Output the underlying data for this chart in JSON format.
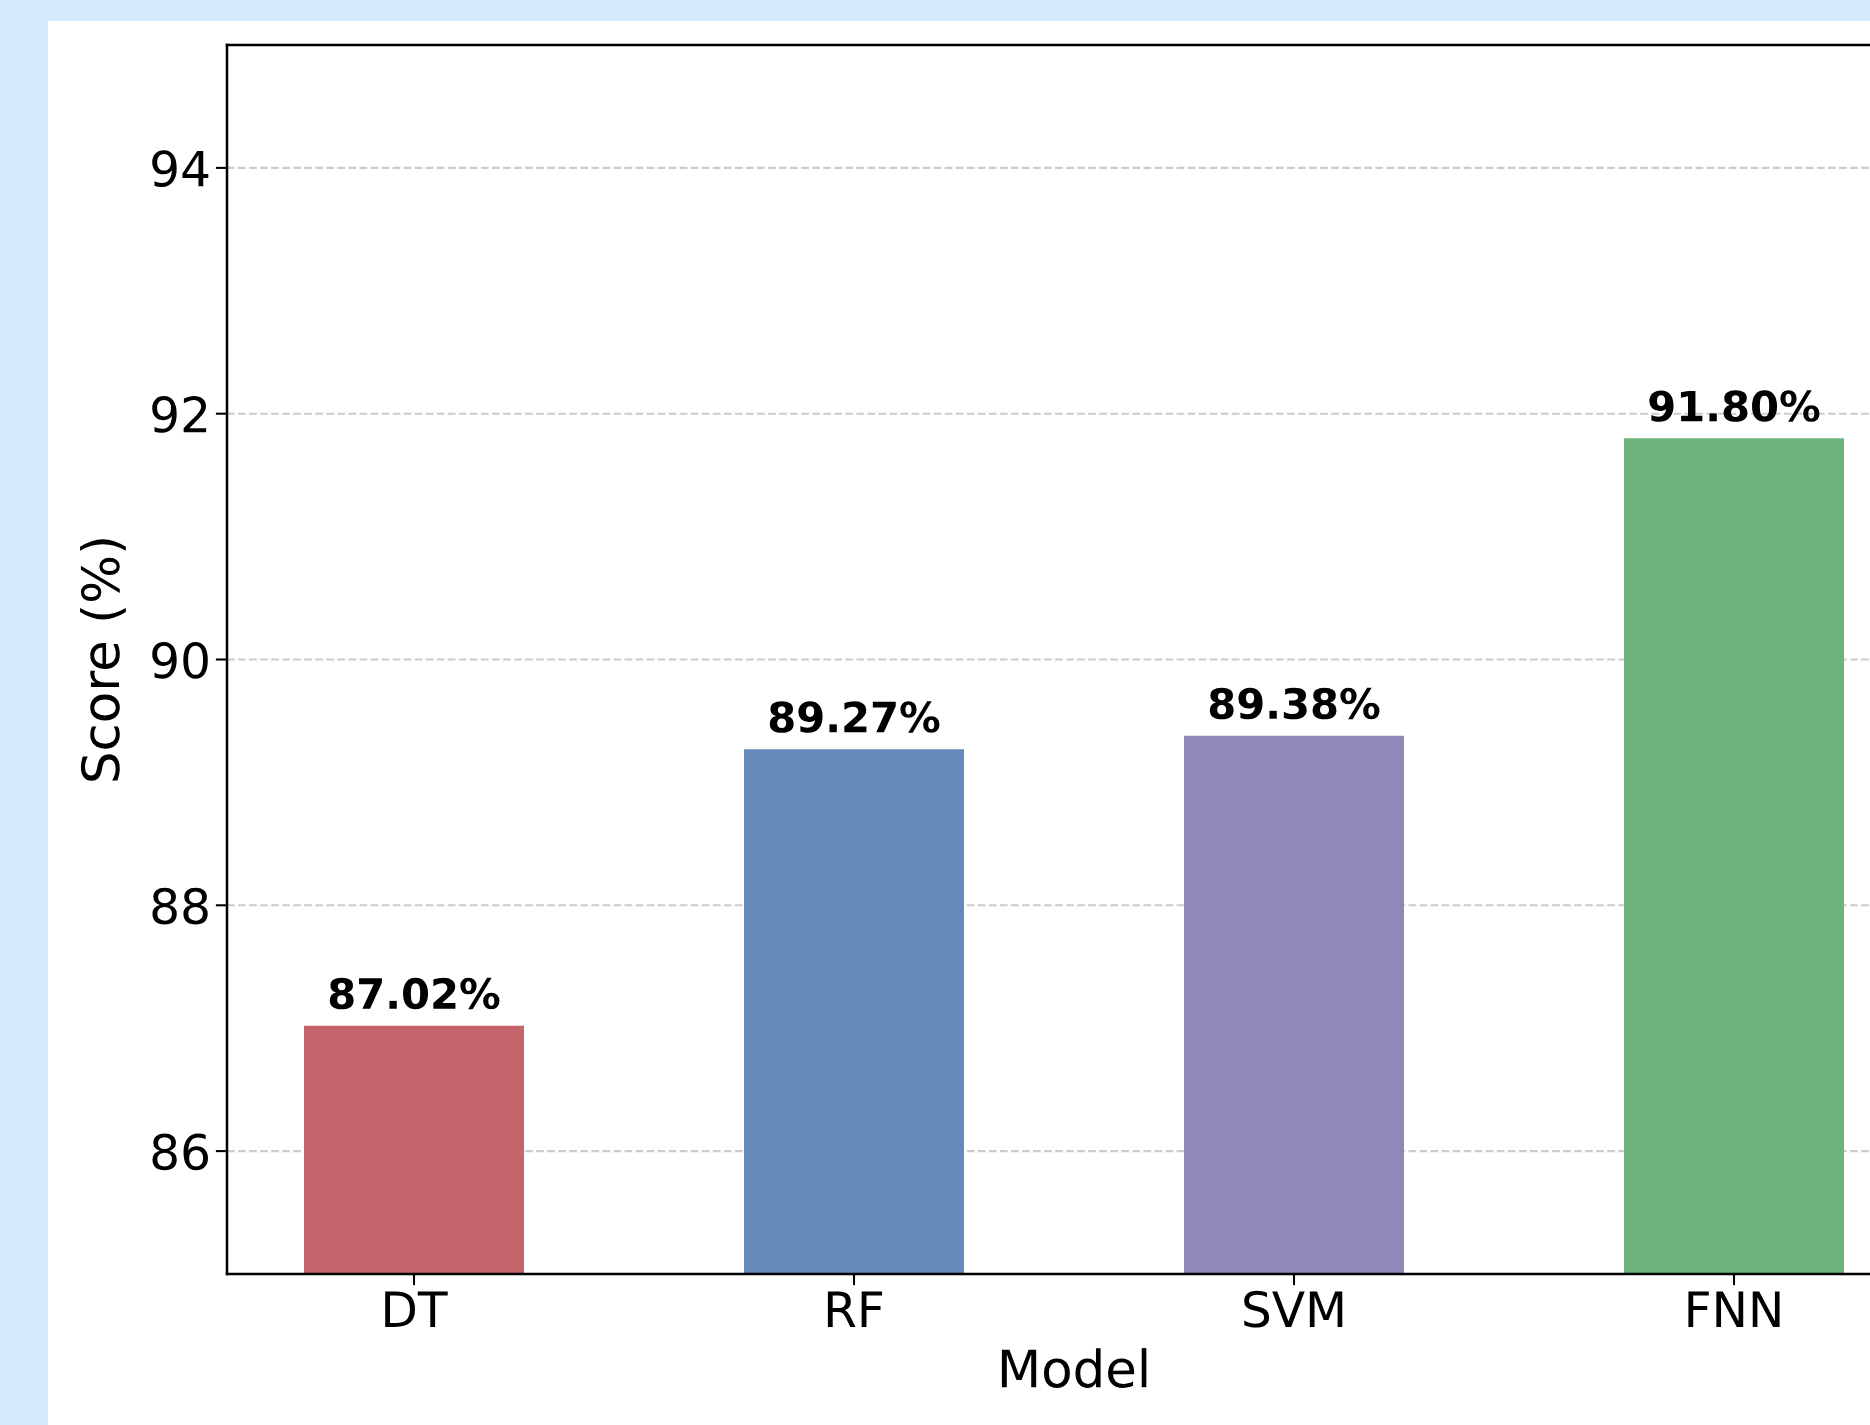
{
  "chart_data": {
    "type": "bar",
    "xlabel": "Model",
    "ylabel": "Score (%)",
    "categories": [
      "DT",
      "RF",
      "SVM",
      "FNN"
    ],
    "values": [
      87.02,
      89.27,
      89.38,
      91.8
    ],
    "colors": [
      "#c5646a",
      "#6589ba",
      "#9187b8",
      "#6db47c"
    ],
    "value_labels": [
      "87.02%",
      "89.27%",
      "89.38%",
      "91.80%"
    ],
    "ylim": [
      85,
      95
    ],
    "yticks": [
      86,
      88,
      90,
      92,
      94
    ],
    "grid": "y"
  }
}
